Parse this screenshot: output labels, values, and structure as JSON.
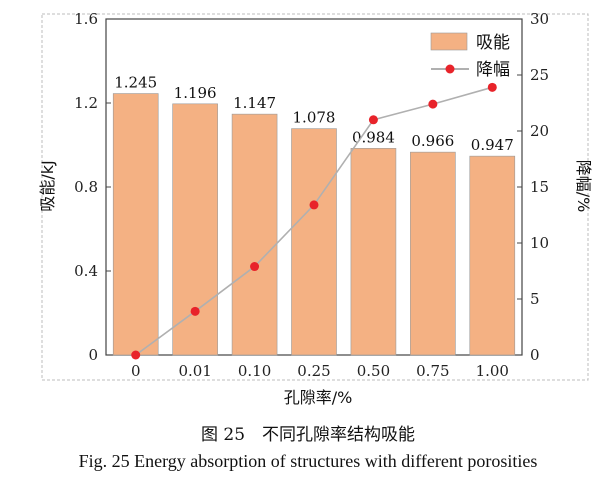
{
  "chart_data": {
    "type": "bar",
    "categories": [
      "0",
      "0.01",
      "0.10",
      "0.25",
      "0.50",
      "0.75",
      "1.00"
    ],
    "series": [
      {
        "name": "吸能",
        "type": "bar",
        "axis": "left",
        "values": [
          1.245,
          1.196,
          1.147,
          1.078,
          0.984,
          0.966,
          0.947
        ],
        "data_labels": [
          "1.245",
          "1.196",
          "1.147",
          "1.078",
          "0.984",
          "0.966",
          "0.947"
        ],
        "color": "#f4b183"
      },
      {
        "name": "降幅",
        "type": "line",
        "axis": "right",
        "values": [
          0,
          3.9,
          7.9,
          13.4,
          21.0,
          22.4,
          23.9
        ],
        "color": "#e8232a",
        "line_color": "#b0b0b0"
      }
    ],
    "xlabel": "孔隙率/%",
    "ylabel_left": "吸能/kJ",
    "ylabel_right": "降幅/%",
    "ylim_left": [
      0,
      1.6
    ],
    "yticks_left": [
      "0",
      "0.4",
      "0.8",
      "1.2",
      "1.6"
    ],
    "ylim_right": [
      0,
      30
    ],
    "yticks_right": [
      "0",
      "5",
      "10",
      "15",
      "20",
      "25",
      "30"
    ],
    "legend_position": "top-right",
    "grid": false
  },
  "captions": {
    "cn": "图 25　不同孔隙率结构吸能",
    "en": "Fig. 25    Energy absorption of structures with different porosities"
  }
}
